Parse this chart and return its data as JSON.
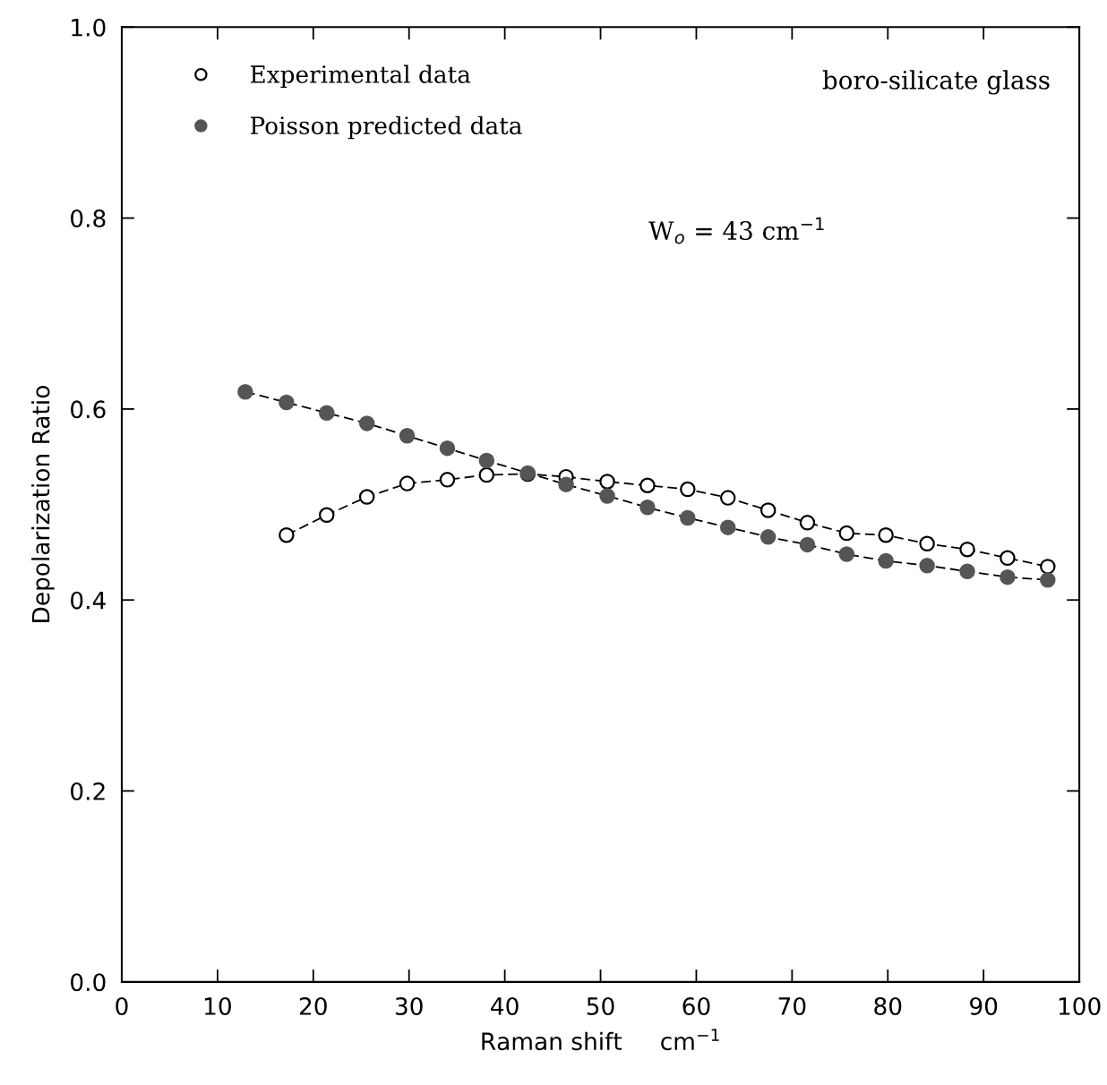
{
  "chart_data": {
    "type": "line",
    "xlabel": "Raman shift     cm$^{−1}$",
    "ylabel": "Depolarization Ratio",
    "annotations": [
      "boro-silicate glass",
      "W$_{o}$ = 43 cm$^{−1}$"
    ],
    "series": [
      {
        "name": "Experimental data",
        "color": "#ffffff",
        "marker": "circle",
        "x": [
          17.2,
          21.4,
          25.6,
          29.8,
          34.0,
          38.1,
          42.4,
          46.4,
          50.7,
          54.9,
          59.1,
          63.3,
          67.5,
          71.6,
          75.7,
          79.8,
          84.1,
          88.3,
          92.5,
          96.7
        ],
        "values": [
          0.468,
          0.489,
          0.508,
          0.522,
          0.526,
          0.531,
          0.532,
          0.529,
          0.524,
          0.52,
          0.516,
          0.507,
          0.494,
          0.481,
          0.47,
          0.468,
          0.459,
          0.453,
          0.444,
          0.435
        ]
      },
      {
        "name": "Poisson predicted data",
        "color": "#555555",
        "marker": "circle",
        "x": [
          12.9,
          17.2,
          21.4,
          25.6,
          29.8,
          34.0,
          38.1,
          42.4,
          46.4,
          50.7,
          54.9,
          59.1,
          63.3,
          67.5,
          71.6,
          75.7,
          79.8,
          84.1,
          88.3,
          92.5,
          96.7
        ],
        "values": [
          0.618,
          0.607,
          0.596,
          0.585,
          0.572,
          0.559,
          0.546,
          0.533,
          0.521,
          0.509,
          0.497,
          0.486,
          0.476,
          0.466,
          0.458,
          0.448,
          0.441,
          0.436,
          0.43,
          0.424,
          0.421
        ]
      }
    ],
    "line_style": "dashed",
    "legend": "top left",
    "grid": false,
    "xlim": [
      0,
      100
    ],
    "xticks": [
      0,
      10,
      20,
      30,
      40,
      50,
      60,
      70,
      80,
      90,
      100
    ],
    "ylim": [
      0.0,
      1.0
    ],
    "yticks": [
      {
        "value": 0.0,
        "label": "0.0"
      },
      {
        "value": 0.2,
        "label": "0.2"
      },
      {
        "value": 0.4,
        "label": "0.4"
      },
      {
        "value": 0.6,
        "label": "0.6"
      },
      {
        "value": 0.8,
        "label": "0.8"
      },
      {
        "value": 1.0,
        "label": "1.0"
      }
    ]
  }
}
